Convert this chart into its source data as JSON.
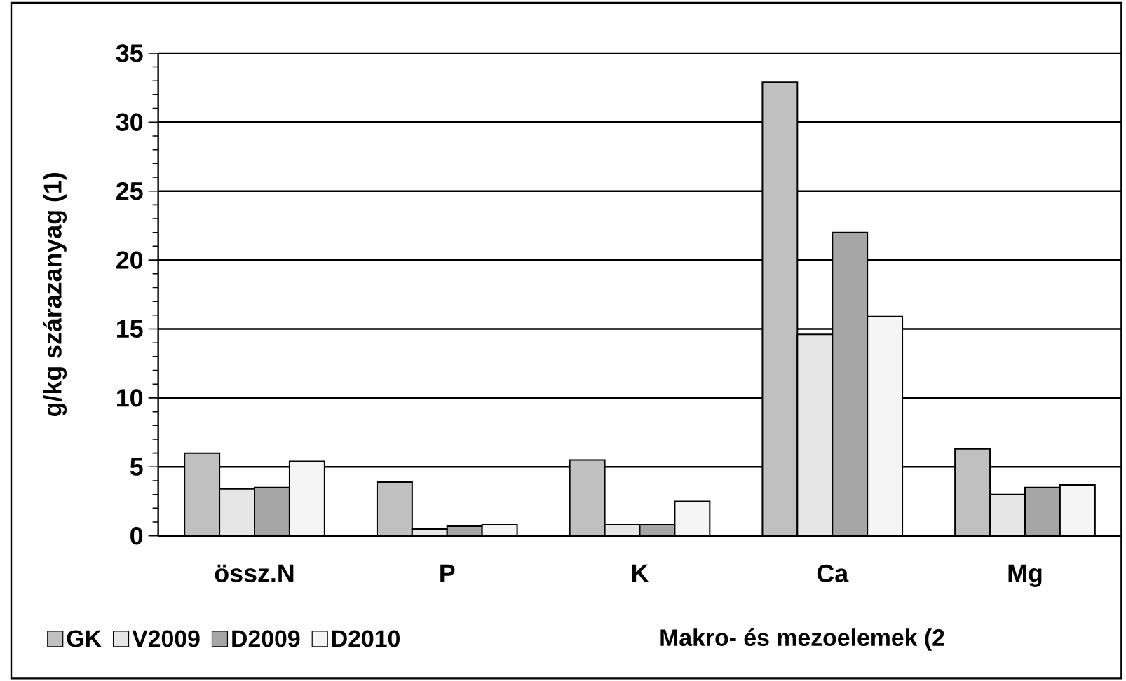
{
  "chart_data": {
    "type": "bar",
    "xlabel": "Makro- és mezoelemek (2",
    "ylabel": "g/kg szárazanyag (1)",
    "categories": [
      "össz.N",
      "P",
      "K",
      "Ca",
      "Mg"
    ],
    "series": [
      {
        "name": "GK",
        "color": "#c0c0c0",
        "values": [
          6.0,
          3.9,
          5.5,
          32.9,
          6.3
        ]
      },
      {
        "name": "V2009",
        "color": "#e6e6e6",
        "values": [
          3.4,
          0.5,
          0.8,
          14.6,
          3.0
        ]
      },
      {
        "name": "D2009",
        "color": "#a6a6a6",
        "values": [
          3.5,
          0.7,
          0.8,
          22.0,
          3.5
        ]
      },
      {
        "name": "D2010",
        "color": "#f5f5f5",
        "values": [
          5.4,
          0.8,
          2.5,
          15.9,
          3.7
        ]
      }
    ],
    "ylim": [
      0,
      35
    ],
    "yticks": [
      0,
      5,
      10,
      15,
      20,
      25,
      30,
      35
    ],
    "grid": "y",
    "legend": "bottom left"
  }
}
